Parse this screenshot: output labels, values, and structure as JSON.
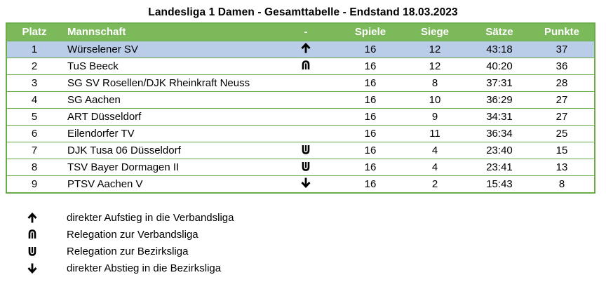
{
  "title": "Landesliga 1 Damen - Gesamttabelle - Endstand 18.03.2023",
  "columns": {
    "platz": "Platz",
    "mannschaft": "Mannschaft",
    "dir": "-",
    "spiele": "Spiele",
    "siege": "Siege",
    "saetze": "Sätze",
    "punkte": "Punkte"
  },
  "rows": [
    {
      "platz": "1",
      "team": "Würselener SV",
      "icon": "arrow-up-icon",
      "spiele": "16",
      "siege": "12",
      "saetze": "43:18",
      "punkte": "37"
    },
    {
      "platz": "2",
      "team": "TuS Beeck",
      "icon": "relegation-up-icon",
      "spiele": "16",
      "siege": "12",
      "saetze": "40:20",
      "punkte": "36"
    },
    {
      "platz": "3",
      "team": "SG SV Rosellen/DJK Rheinkraft Neuss",
      "icon": "",
      "spiele": "16",
      "siege": "8",
      "saetze": "37:31",
      "punkte": "28"
    },
    {
      "platz": "4",
      "team": "SG Aachen",
      "icon": "",
      "spiele": "16",
      "siege": "10",
      "saetze": "36:29",
      "punkte": "27"
    },
    {
      "platz": "5",
      "team": "ART Düsseldorf",
      "icon": "",
      "spiele": "16",
      "siege": "9",
      "saetze": "34:31",
      "punkte": "27"
    },
    {
      "platz": "6",
      "team": "Eilendorfer TV",
      "icon": "",
      "spiele": "16",
      "siege": "11",
      "saetze": "36:34",
      "punkte": "25"
    },
    {
      "platz": "7",
      "team": "DJK Tusa 06 Düsseldorf",
      "icon": "relegation-down-icon",
      "spiele": "16",
      "siege": "4",
      "saetze": "23:40",
      "punkte": "15"
    },
    {
      "platz": "8",
      "team": "TSV Bayer Dormagen II",
      "icon": "relegation-down-icon",
      "spiele": "16",
      "siege": "4",
      "saetze": "23:41",
      "punkte": "13"
    },
    {
      "platz": "9",
      "team": "PTSV Aachen V",
      "icon": "arrow-down-icon",
      "spiele": "16",
      "siege": "2",
      "saetze": "15:43",
      "punkte": "8"
    }
  ],
  "legend": [
    {
      "icon": "arrow-up-icon",
      "text": "direkter Aufstieg in die Verbandsliga"
    },
    {
      "icon": "relegation-up-icon",
      "text": "Relegation zur Verbandsliga"
    },
    {
      "icon": "relegation-down-icon",
      "text": "Relegation zur Bezirksliga"
    },
    {
      "icon": "arrow-down-icon",
      "text": "direkter Abstieg in die Bezirksliga"
    }
  ],
  "colors": {
    "header_bg": "#7cb95b",
    "border": "#6aab4a",
    "highlight_row": "#b9cde8"
  }
}
